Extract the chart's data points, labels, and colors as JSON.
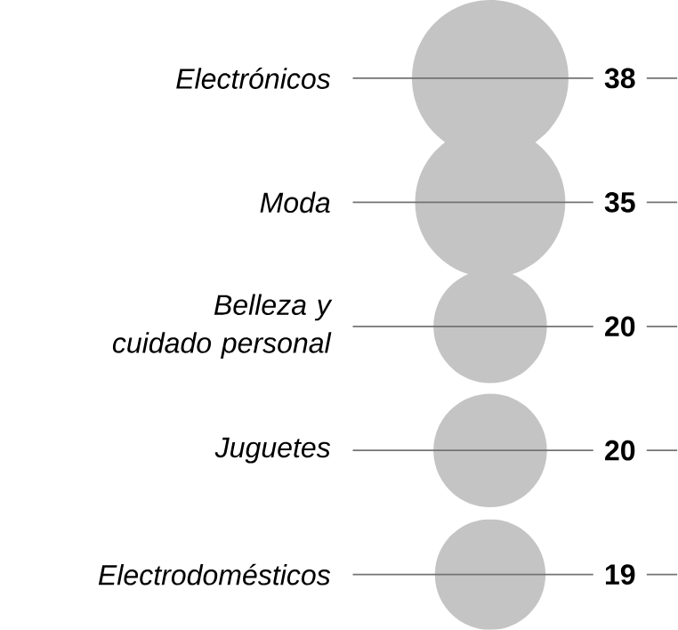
{
  "chart_data": {
    "type": "other",
    "categories": [
      "Electrónicos",
      "Moda",
      "Belleza y cuidado personal",
      "Juguetes",
      "Electrodomésticos"
    ],
    "values": [
      38,
      35,
      20,
      20,
      19
    ],
    "color": "#c4c4c4",
    "data_labels": true
  }
}
